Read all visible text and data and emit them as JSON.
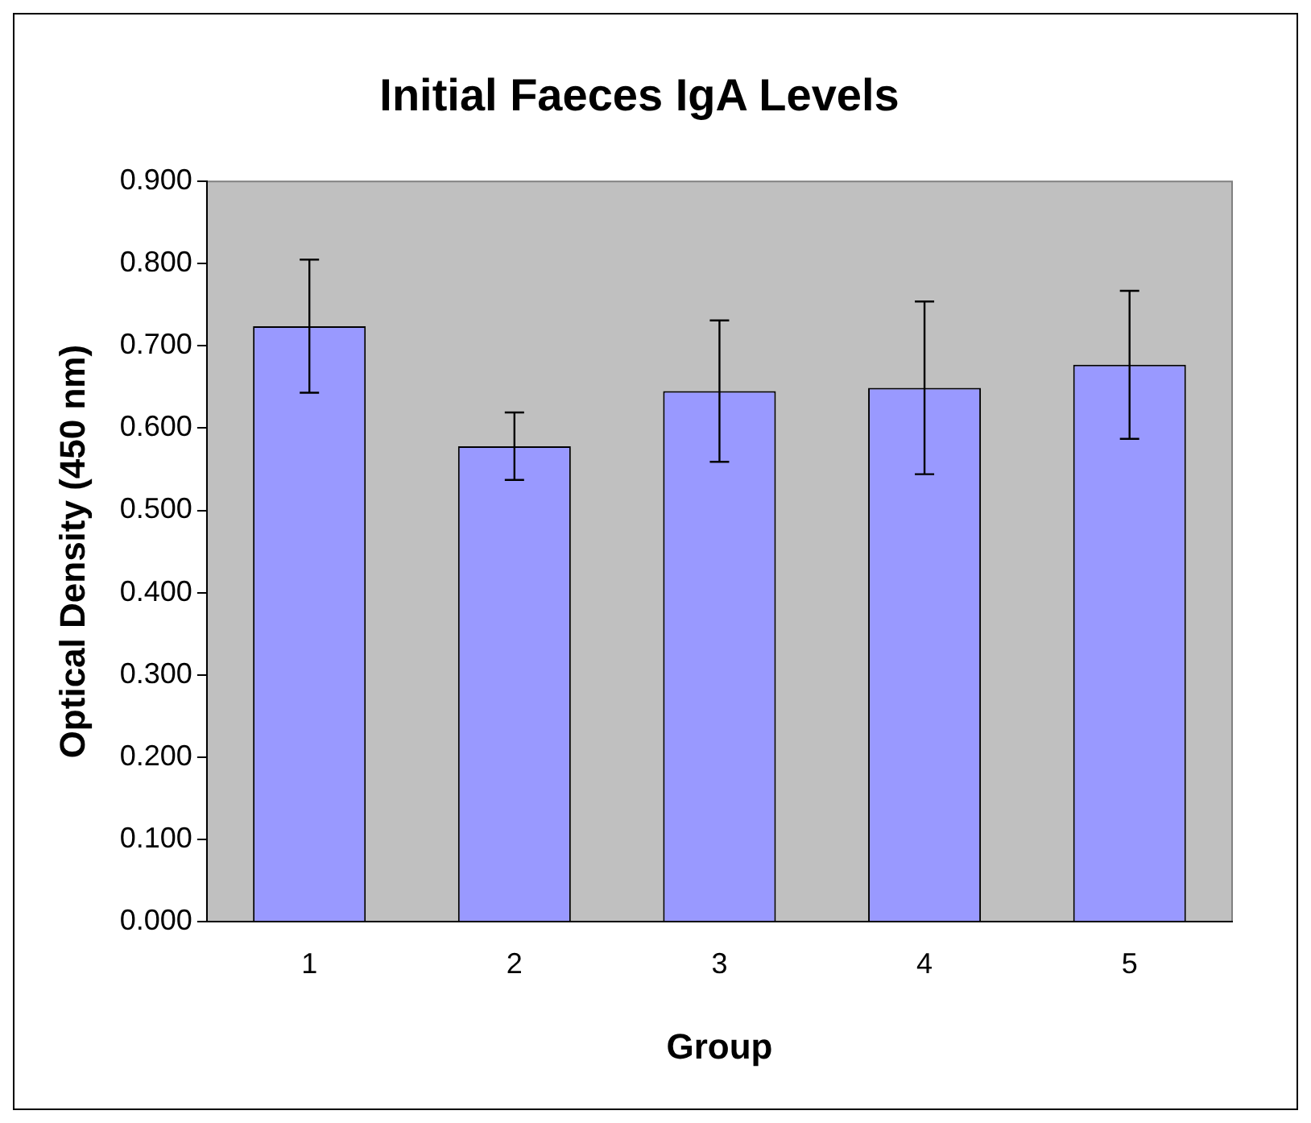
{
  "chart_data": {
    "type": "bar",
    "title": "Initial Faeces IgA Levels",
    "xlabel": "Group",
    "ylabel": "Optical Density (450 nm)",
    "categories": [
      "1",
      "2",
      "3",
      "4",
      "5"
    ],
    "values": [
      0.724,
      0.578,
      0.645,
      0.649,
      0.677
    ],
    "errors": [
      0.081,
      0.041,
      0.086,
      0.105,
      0.09
    ],
    "color": "#9999ff",
    "ylim": [
      0,
      0.9
    ],
    "yticks": [
      {
        "value": 0,
        "label": "0.000"
      },
      {
        "value": 0.1,
        "label": "0.100"
      },
      {
        "value": 0.2,
        "label": "0.200"
      },
      {
        "value": 0.3,
        "label": "0.300"
      },
      {
        "value": 0.4,
        "label": "0.400"
      },
      {
        "value": 0.5,
        "label": "0.500"
      },
      {
        "value": 0.6,
        "label": "0.600"
      },
      {
        "value": 0.7,
        "label": "0.700"
      },
      {
        "value": 0.8,
        "label": "0.800"
      },
      {
        "value": 0.9,
        "label": "0.900"
      }
    ],
    "grid": false,
    "legend": false
  }
}
